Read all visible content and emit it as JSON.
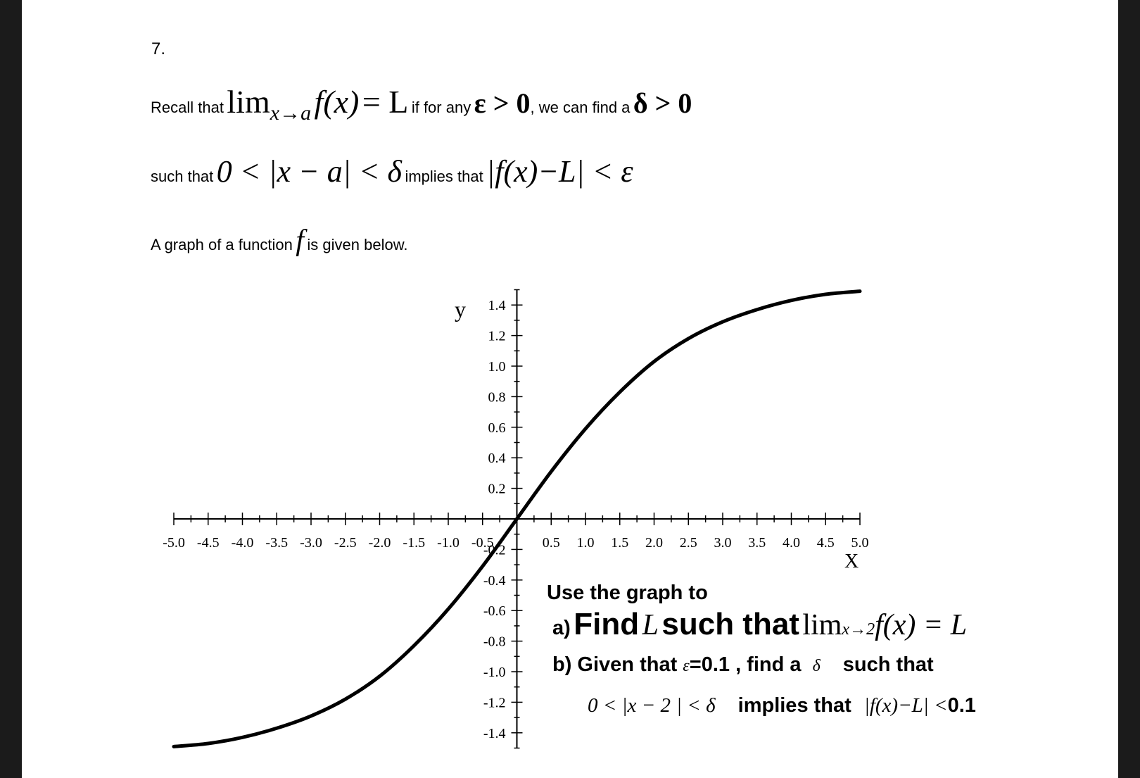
{
  "problem": {
    "number": "7.",
    "line1": {
      "recall": "Recall that",
      "lim": "lim",
      "sub": "x→a",
      "fx": "f",
      "paren": "(x)",
      "eq": "= L",
      "ifany": "if for any",
      "eps": "ε > 0",
      "wecan": ", we can find a",
      "delta": "δ > 0"
    },
    "line2": {
      "suchthat": "such that",
      "ineq": "0 < |x − a| < δ",
      "implies": "implies that",
      "ineq2": "|f(x)−L| < ε"
    },
    "line3": {
      "pre": "A graph of a function",
      "f": "f",
      "post": "is given below."
    }
  },
  "questions": {
    "intro": "Use the graph to",
    "a_label": "a)",
    "a_text": "Find",
    "a_L": "L",
    "a_text2": "such that",
    "a_math": "lim",
    "a_sub": "x→2",
    "a_math2": "f(x) = L",
    "b_text": "b) Given that",
    "b_eps": "ε",
    "b_val": "=0.1 , find a",
    "b_delta": "δ",
    "b_text2": "such that",
    "c_ineq": "0 < |x − 2",
    "c_bold2": "2",
    "c_ineq2": "| < δ",
    "c_implies": "implies that",
    "c_abs": "|f(x)−L| <",
    "c_val": "0.1"
  },
  "chart_data": {
    "type": "line",
    "xlabel": "x",
    "ylabel": "y",
    "xlim": [
      -5,
      5
    ],
    "ylim": [
      -1.5,
      1.5
    ],
    "grid": false,
    "x_ticks": [
      "-5.0",
      "-4.5",
      "-4.0",
      "-3.5",
      "-3.0",
      "-2.5",
      "-2.0",
      "-1.5",
      "-1.0",
      "-0.5",
      "0.5",
      "1.0",
      "1.5",
      "2.0",
      "2.5",
      "3.0",
      "3.5",
      "4.0",
      "4.5",
      "5.0"
    ],
    "y_ticks": [
      "1.4",
      "1.2",
      "1.0",
      "0.8",
      "0.6",
      "0.4",
      "0.2",
      "-0.2",
      "-0.4",
      "-0.6",
      "-0.8",
      "-1.0",
      "-1.2",
      "-1.4"
    ],
    "series": [
      {
        "x": [
          -5,
          -4.5,
          -4,
          -3.5,
          -3,
          -2.5,
          -2,
          -1.5,
          -1,
          -0.5,
          0,
          0.5,
          1,
          1.5,
          2,
          2.5,
          3,
          3.5,
          4,
          4.5,
          5
        ],
        "y": [
          -1.49,
          -1.47,
          -1.43,
          -1.37,
          -1.29,
          -1.18,
          -1.03,
          -0.83,
          -0.59,
          -0.31,
          0,
          0.31,
          0.59,
          0.83,
          1.03,
          1.18,
          1.29,
          1.37,
          1.43,
          1.47,
          1.49
        ]
      }
    ]
  }
}
